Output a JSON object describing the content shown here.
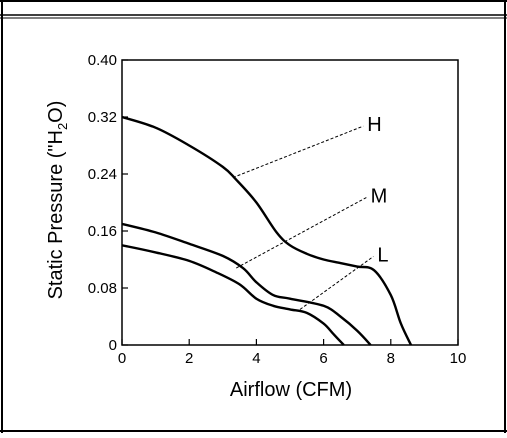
{
  "chart_data": {
    "type": "line",
    "title": "",
    "xlabel": "Airflow (CFM)",
    "ylabel": "Static Pressure (\"H",
    "ylabel_sub": "2",
    "ylabel_end": "O)",
    "xlim": [
      0,
      10
    ],
    "ylim": [
      0,
      0.4
    ],
    "grid": false,
    "x_ticks": [
      0,
      2,
      4,
      6,
      8,
      10
    ],
    "x_tick_labels": [
      "0",
      "2",
      "4",
      "6",
      "8",
      "10"
    ],
    "y_ticks": [
      0,
      0.08,
      0.16,
      0.24,
      0.32,
      0.4
    ],
    "y_tick_labels": [
      "0",
      "0.08",
      "0.16",
      "0.24",
      "0.32",
      "0.40"
    ],
    "series": [
      {
        "name": "H",
        "x": [
          0,
          1,
          2,
          3,
          3.4,
          4,
          4.6,
          5,
          5.5,
          6,
          6.5,
          7,
          7.5,
          8,
          8.3,
          8.6
        ],
        "y": [
          0.32,
          0.305,
          0.28,
          0.25,
          0.232,
          0.2,
          0.158,
          0.14,
          0.128,
          0.12,
          0.115,
          0.11,
          0.105,
          0.07,
          0.03,
          0.0
        ],
        "leader_from": [
          3.3,
          0.235
        ],
        "label_at": [
          7.3,
          0.31
        ]
      },
      {
        "name": "M",
        "x": [
          0,
          1,
          2,
          3,
          3.6,
          4,
          4.5,
          5,
          6,
          6.5,
          7,
          7.4
        ],
        "y": [
          0.17,
          0.158,
          0.142,
          0.125,
          0.108,
          0.088,
          0.07,
          0.065,
          0.055,
          0.04,
          0.02,
          0.0
        ],
        "leader_from": [
          3.4,
          0.108
        ],
        "label_at": [
          7.4,
          0.21
        ]
      },
      {
        "name": "L",
        "x": [
          0,
          1,
          2,
          2.8,
          3.5,
          4,
          4.5,
          5,
          5.5,
          6,
          6.3,
          6.6
        ],
        "y": [
          0.14,
          0.13,
          0.118,
          0.102,
          0.085,
          0.065,
          0.055,
          0.05,
          0.045,
          0.03,
          0.015,
          0.0
        ],
        "leader_from": [
          5.3,
          0.05
        ],
        "label_at": [
          7.6,
          0.127
        ]
      }
    ]
  }
}
